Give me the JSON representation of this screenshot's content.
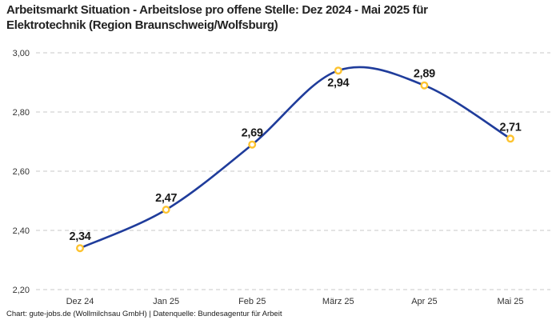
{
  "title": {
    "line1": "Arbeitsmarkt Situation - Arbeitslose pro offene Stelle: Dez 2024 - Mai 2025 für",
    "line2": "Elektrotechnik (Region Braunschweig/Wolfsburg)"
  },
  "footer": {
    "credit": "Chart: gute-jobs.de (Wollmilchsau GmbH) | Datenquelle: Bundesagentur für Arbeit"
  },
  "chart_data": {
    "type": "line",
    "title": "Arbeitsmarkt Situation - Arbeitslose pro offene Stelle: Dez 2024 - Mai 2025 für Elektrotechnik (Region Braunschweig/Wolfsburg)",
    "categories": [
      "Dez 24",
      "Jan 25",
      "Feb 25",
      "März 25",
      "Apr 25",
      "Mai 25"
    ],
    "values": [
      2.34,
      2.47,
      2.69,
      2.94,
      2.89,
      2.71
    ],
    "point_labels": [
      "2,34",
      "2,47",
      "2,69",
      "2,94",
      "2,89",
      "2,71"
    ],
    "label_positions": [
      "above",
      "above",
      "above",
      "below",
      "above",
      "above"
    ],
    "yticks": [
      {
        "value": 2.2,
        "label": "2,20"
      },
      {
        "value": 2.4,
        "label": "2,40"
      },
      {
        "value": 2.6,
        "label": "2,60"
      },
      {
        "value": 2.8,
        "label": "2,80"
      },
      {
        "value": 3.0,
        "label": "3,00"
      }
    ],
    "ylim": [
      2.2,
      3.0
    ],
    "xlabel": "",
    "ylabel": "",
    "legend": "none",
    "grid": "horizontal-dashed",
    "line_style": "smooth-spline",
    "marker_style": "open-circle",
    "colors": {
      "line": "#1f3c9b",
      "marker_ring": "#fdc32f",
      "marker_fill": "#ffffff",
      "gridline": "#c9c9c9",
      "tick_text": "#333333",
      "data_label_text": "#1a1a1a",
      "title_text": "#222222",
      "background": "#ffffff"
    }
  }
}
